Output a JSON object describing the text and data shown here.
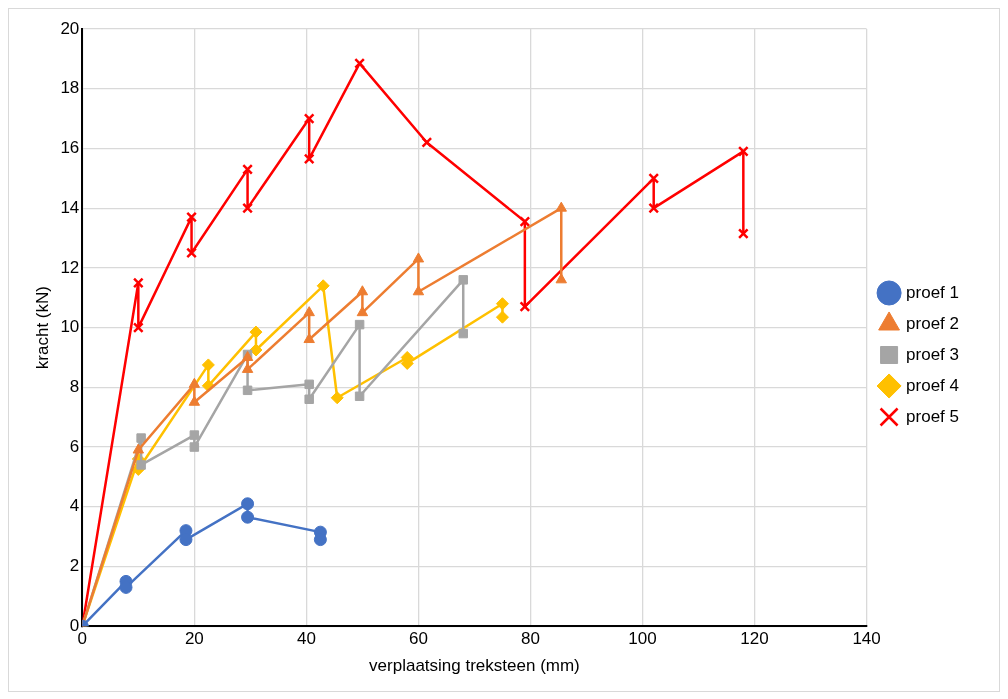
{
  "chart_data": {
    "type": "line",
    "xlabel": "verplaatsing treksteen (mm)",
    "ylabel": "kracht (kN)",
    "xlim": [
      0,
      140
    ],
    "xticks": [
      0,
      20,
      40,
      60,
      80,
      100,
      120,
      140
    ],
    "ylim": [
      0,
      20
    ],
    "yticks": [
      0,
      2,
      4,
      6,
      8,
      10,
      12,
      14,
      16,
      18,
      20
    ],
    "grid": true,
    "legend": "right",
    "line_style": "solid",
    "series": [
      {
        "name": "proef 1",
        "color": "#4472c4",
        "marker": "circle",
        "x": [
          0,
          7.8,
          7.8,
          18.5,
          18.5,
          29.5,
          29.5,
          42.5,
          42.5
        ],
        "values": [
          0,
          1.5,
          1.3,
          3.2,
          2.9,
          4.1,
          3.65,
          3.15,
          2.9
        ]
      },
      {
        "name": "proef 2",
        "color": "#ed7d31",
        "marker": "triangle",
        "x": [
          0,
          10,
          20,
          20,
          29.5,
          29.5,
          40.5,
          40.5,
          50,
          50,
          60,
          60,
          85.5,
          85.5
        ],
        "values": [
          0,
          5.9,
          8.1,
          7.5,
          9.0,
          8.6,
          10.5,
          9.6,
          11.2,
          10.5,
          12.3,
          11.2,
          14.0,
          11.6
        ]
      },
      {
        "name": "proef 3",
        "color": "#a5a5a5",
        "marker": "square",
        "x": [
          0,
          10.5,
          10.5,
          20,
          20,
          29.5,
          29.5,
          40.5,
          40.5,
          49.5,
          49.5,
          68,
          68
        ],
        "values": [
          0,
          6.3,
          5.4,
          6.4,
          6.0,
          9.1,
          7.9,
          8.1,
          7.6,
          10.1,
          7.7,
          11.6,
          9.8
        ]
      },
      {
        "name": "proef 4",
        "color": "#ffc000",
        "marker": "diamond",
        "x": [
          0,
          10,
          10,
          22.5,
          22.5,
          31,
          31,
          43,
          45.5,
          58,
          58,
          75,
          75
        ],
        "values": [
          0,
          5.6,
          5.25,
          8.75,
          8.05,
          9.85,
          9.25,
          11.4,
          7.65,
          9.0,
          8.8,
          10.8,
          10.35
        ]
      },
      {
        "name": "proef 5",
        "color": "#ff0000",
        "marker": "cross",
        "x": [
          0,
          10,
          10,
          19.5,
          19.5,
          29.5,
          29.5,
          40.5,
          40.5,
          49.5,
          61.5,
          79,
          79,
          102,
          102,
          118,
          118
        ],
        "values": [
          0,
          11.5,
          10.0,
          13.7,
          12.5,
          15.3,
          14.0,
          17.0,
          15.65,
          18.85,
          16.2,
          13.55,
          10.7,
          15.0,
          14.0,
          15.9,
          13.15
        ]
      }
    ]
  }
}
